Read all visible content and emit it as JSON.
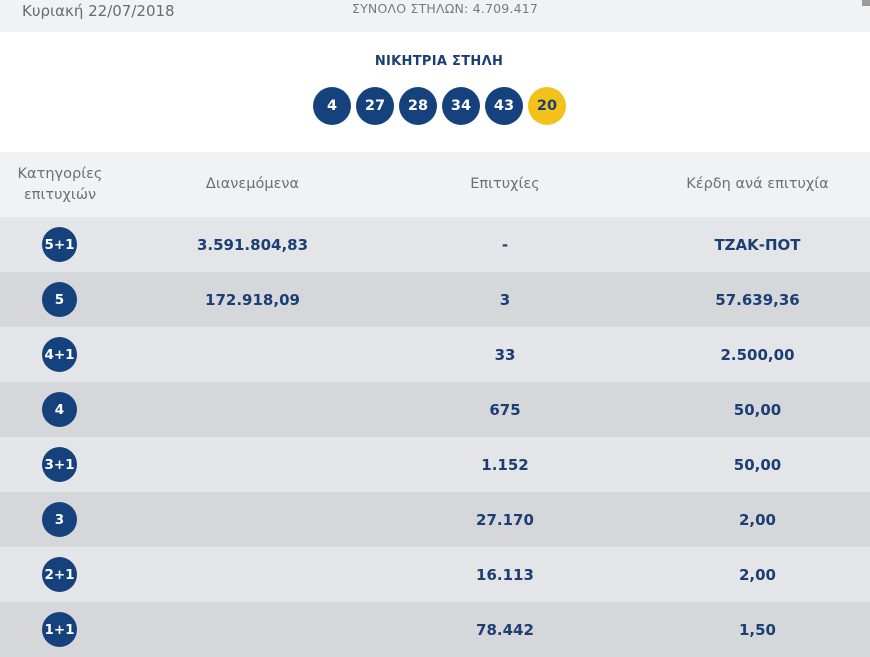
{
  "header": {
    "date": "Κυριακή 22/07/2018",
    "total_columns": "ΣΥΝΟΛΟ ΣΤΗΛΩΝ: 4.709.417"
  },
  "winning": {
    "title": "ΝΙΚΗΤΡΙΑ ΣΤΗΛΗ",
    "numbers": [
      "4",
      "27",
      "28",
      "34",
      "43"
    ],
    "bonus": "20",
    "colors": {
      "main": "#15417c",
      "bonus": "#f3c21a"
    }
  },
  "table": {
    "headers": {
      "category": "Κατηγορίες επιτυχιών",
      "distributed": "Διανεμόμενα",
      "winners": "Επιτυχίες",
      "prize": "Κέρδη ανά επιτυχία"
    },
    "rows": [
      {
        "category": "5+1",
        "distributed": "3.591.804,83",
        "winners": "-",
        "prize": "ΤΖΑΚ-ΠΟΤ"
      },
      {
        "category": "5",
        "distributed": "172.918,09",
        "winners": "3",
        "prize": "57.639,36"
      },
      {
        "category": "4+1",
        "distributed": "",
        "winners": "33",
        "prize": "2.500,00"
      },
      {
        "category": "4",
        "distributed": "",
        "winners": "675",
        "prize": "50,00"
      },
      {
        "category": "3+1",
        "distributed": "",
        "winners": "1.152",
        "prize": "50,00"
      },
      {
        "category": "3",
        "distributed": "",
        "winners": "27.170",
        "prize": "2,00"
      },
      {
        "category": "2+1",
        "distributed": "",
        "winners": "16.113",
        "prize": "2,00"
      },
      {
        "category": "1+1",
        "distributed": "",
        "winners": "78.442",
        "prize": "1,50"
      }
    ]
  }
}
